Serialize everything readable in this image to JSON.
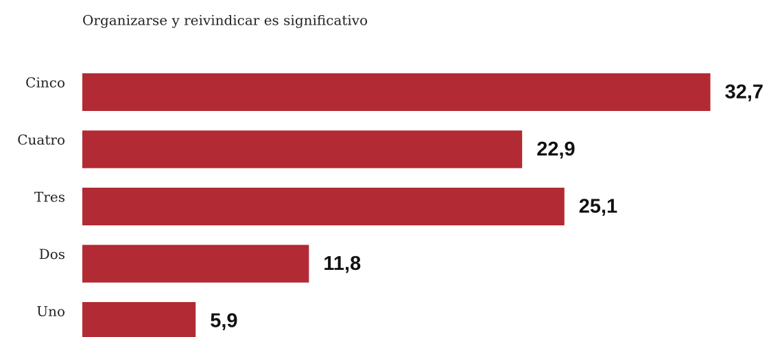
{
  "chart_data": {
    "type": "bar",
    "orientation": "horizontal",
    "title": "Organizarse y reivindicar es significativo",
    "categories": [
      "Cinco",
      "Cuatro",
      "Tres",
      "Dos",
      "Uno"
    ],
    "values": [
      32.7,
      22.9,
      25.1,
      11.8,
      5.9
    ],
    "value_labels": [
      "32,7",
      "22,9",
      "25,1",
      "11,8",
      "5,9"
    ],
    "color": "#b22a33"
  }
}
